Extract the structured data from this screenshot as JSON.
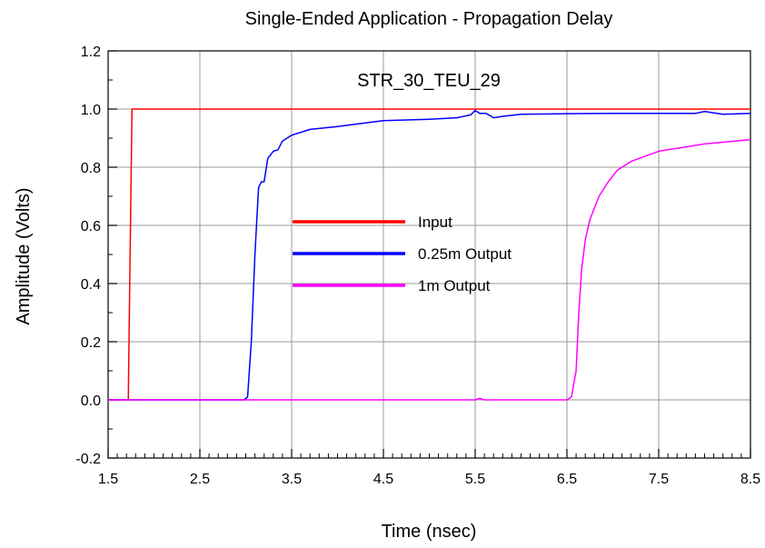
{
  "chart_data": {
    "type": "line",
    "title": "Single-Ended Application - Propagation Delay",
    "annotation": "STR_30_TEU_29",
    "xlabel": "Time (nsec)",
    "ylabel": "Amplitude (Volts)",
    "xlim": [
      1.5,
      8.5
    ],
    "ylim": [
      -0.2,
      1.2
    ],
    "x_ticks": [
      "1.5",
      "2.5",
      "3.5",
      "4.5",
      "5.5",
      "6.5",
      "7.5",
      "8.5"
    ],
    "y_ticks": [
      "-0.2",
      "0.0",
      "0.2",
      "0.4",
      "0.6",
      "0.8",
      "1.0",
      "1.2"
    ],
    "grid": true,
    "legend_position": "center",
    "series": [
      {
        "name": "Input",
        "color": "#ff0000",
        "points": [
          [
            1.5,
            0.0
          ],
          [
            1.72,
            0.0
          ],
          [
            1.74,
            0.5
          ],
          [
            1.76,
            1.0
          ],
          [
            8.5,
            1.0
          ]
        ]
      },
      {
        "name": "0.25m Output",
        "color": "#0000ff",
        "points": [
          [
            1.5,
            0.0
          ],
          [
            2.98,
            0.0
          ],
          [
            3.02,
            0.01
          ],
          [
            3.06,
            0.2
          ],
          [
            3.1,
            0.5
          ],
          [
            3.14,
            0.73
          ],
          [
            3.17,
            0.75
          ],
          [
            3.2,
            0.75
          ],
          [
            3.24,
            0.83
          ],
          [
            3.3,
            0.855
          ],
          [
            3.35,
            0.86
          ],
          [
            3.4,
            0.89
          ],
          [
            3.5,
            0.91
          ],
          [
            3.7,
            0.93
          ],
          [
            4.0,
            0.94
          ],
          [
            4.5,
            0.96
          ],
          [
            5.0,
            0.965
          ],
          [
            5.3,
            0.97
          ],
          [
            5.45,
            0.98
          ],
          [
            5.5,
            0.995
          ],
          [
            5.55,
            0.985
          ],
          [
            5.62,
            0.985
          ],
          [
            5.7,
            0.97
          ],
          [
            5.8,
            0.975
          ],
          [
            6.0,
            0.982
          ],
          [
            6.5,
            0.984
          ],
          [
            7.0,
            0.985
          ],
          [
            7.5,
            0.985
          ],
          [
            7.9,
            0.985
          ],
          [
            8.0,
            0.992
          ],
          [
            8.2,
            0.982
          ],
          [
            8.5,
            0.985
          ]
        ]
      },
      {
        "name": "1m Output",
        "color": "#ff00ff",
        "points": [
          [
            1.5,
            0.0
          ],
          [
            5.5,
            0.0
          ],
          [
            5.55,
            0.005
          ],
          [
            5.6,
            0.0
          ],
          [
            6.5,
            0.0
          ],
          [
            6.55,
            0.01
          ],
          [
            6.6,
            0.1
          ],
          [
            6.63,
            0.3
          ],
          [
            6.66,
            0.45
          ],
          [
            6.7,
            0.55
          ],
          [
            6.75,
            0.62
          ],
          [
            6.85,
            0.7
          ],
          [
            6.95,
            0.75
          ],
          [
            7.05,
            0.79
          ],
          [
            7.2,
            0.82
          ],
          [
            7.5,
            0.855
          ],
          [
            8.0,
            0.88
          ],
          [
            8.5,
            0.895
          ]
        ]
      }
    ]
  }
}
